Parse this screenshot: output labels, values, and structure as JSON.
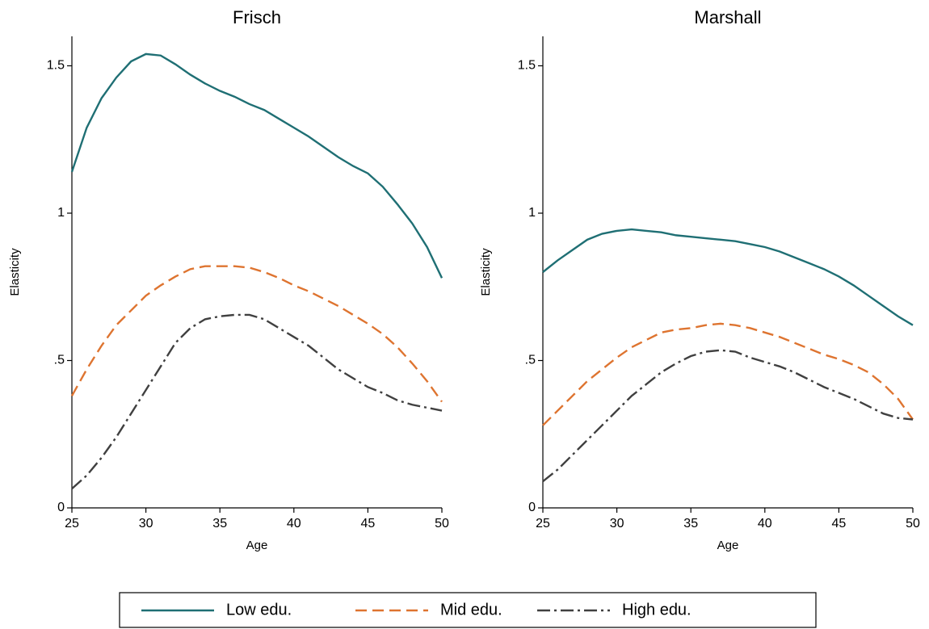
{
  "chart_data": [
    {
      "type": "line",
      "title": "Frisch",
      "x_label": "Age",
      "y_label": "Elasticity",
      "x": [
        25,
        26,
        27,
        28,
        29,
        30,
        31,
        32,
        33,
        34,
        35,
        36,
        37,
        38,
        39,
        40,
        41,
        42,
        43,
        44,
        45,
        46,
        47,
        48,
        49,
        50
      ],
      "xlim": [
        25,
        50
      ],
      "xticks": [
        25,
        30,
        35,
        40,
        45,
        50
      ],
      "ylim": [
        0,
        1.6
      ],
      "yticks": [
        0,
        {
          "value": 0.5,
          "label": ".5"
        },
        1,
        1.5
      ],
      "series": [
        {
          "name": "Low edu.",
          "color": "#1f6f74",
          "dash": "solid",
          "values": [
            1.14,
            1.29,
            1.39,
            1.46,
            1.515,
            1.54,
            1.535,
            1.505,
            1.47,
            1.44,
            1.415,
            1.395,
            1.37,
            1.35,
            1.32,
            1.29,
            1.26,
            1.225,
            1.19,
            1.16,
            1.135,
            1.09,
            1.03,
            0.965,
            0.885,
            0.78
          ]
        },
        {
          "name": "Mid edu.",
          "color": "#de7430",
          "dash": "dash",
          "values": [
            0.38,
            0.47,
            0.55,
            0.62,
            0.67,
            0.72,
            0.755,
            0.785,
            0.81,
            0.82,
            0.82,
            0.82,
            0.815,
            0.8,
            0.78,
            0.755,
            0.735,
            0.71,
            0.685,
            0.655,
            0.625,
            0.59,
            0.545,
            0.49,
            0.43,
            0.36
          ]
        },
        {
          "name": "High edu.",
          "color": "#404040",
          "dash": "dashdot",
          "values": [
            0.065,
            0.11,
            0.17,
            0.24,
            0.32,
            0.4,
            0.48,
            0.56,
            0.61,
            0.64,
            0.65,
            0.655,
            0.655,
            0.64,
            0.61,
            0.58,
            0.55,
            0.51,
            0.47,
            0.44,
            0.41,
            0.39,
            0.365,
            0.35,
            0.34,
            0.33
          ]
        }
      ]
    },
    {
      "type": "line",
      "title": "Marshall",
      "x_label": "Age",
      "y_label": "Elasticity",
      "x": [
        25,
        26,
        27,
        28,
        29,
        30,
        31,
        32,
        33,
        34,
        35,
        36,
        37,
        38,
        39,
        40,
        41,
        42,
        43,
        44,
        45,
        46,
        47,
        48,
        49,
        50
      ],
      "xlim": [
        25,
        50
      ],
      "xticks": [
        25,
        30,
        35,
        40,
        45,
        50
      ],
      "ylim": [
        0,
        1.6
      ],
      "yticks": [
        0,
        {
          "value": 0.5,
          "label": ".5"
        },
        1,
        1.5
      ],
      "series": [
        {
          "name": "Low edu.",
          "color": "#1f6f74",
          "dash": "solid",
          "values": [
            0.8,
            0.84,
            0.875,
            0.91,
            0.93,
            0.94,
            0.945,
            0.94,
            0.935,
            0.925,
            0.92,
            0.915,
            0.91,
            0.905,
            0.895,
            0.885,
            0.87,
            0.85,
            0.83,
            0.81,
            0.785,
            0.755,
            0.72,
            0.685,
            0.65,
            0.62
          ]
        },
        {
          "name": "Mid edu.",
          "color": "#de7430",
          "dash": "dash",
          "values": [
            0.28,
            0.33,
            0.38,
            0.43,
            0.47,
            0.51,
            0.545,
            0.57,
            0.595,
            0.605,
            0.61,
            0.62,
            0.625,
            0.62,
            0.61,
            0.595,
            0.58,
            0.56,
            0.54,
            0.52,
            0.505,
            0.485,
            0.46,
            0.42,
            0.37,
            0.3
          ]
        },
        {
          "name": "High edu.",
          "color": "#404040",
          "dash": "dashdot",
          "values": [
            0.09,
            0.13,
            0.18,
            0.23,
            0.28,
            0.33,
            0.38,
            0.42,
            0.46,
            0.49,
            0.515,
            0.53,
            0.535,
            0.53,
            0.51,
            0.495,
            0.48,
            0.46,
            0.435,
            0.41,
            0.39,
            0.37,
            0.345,
            0.32,
            0.305,
            0.3
          ]
        }
      ]
    }
  ]
}
